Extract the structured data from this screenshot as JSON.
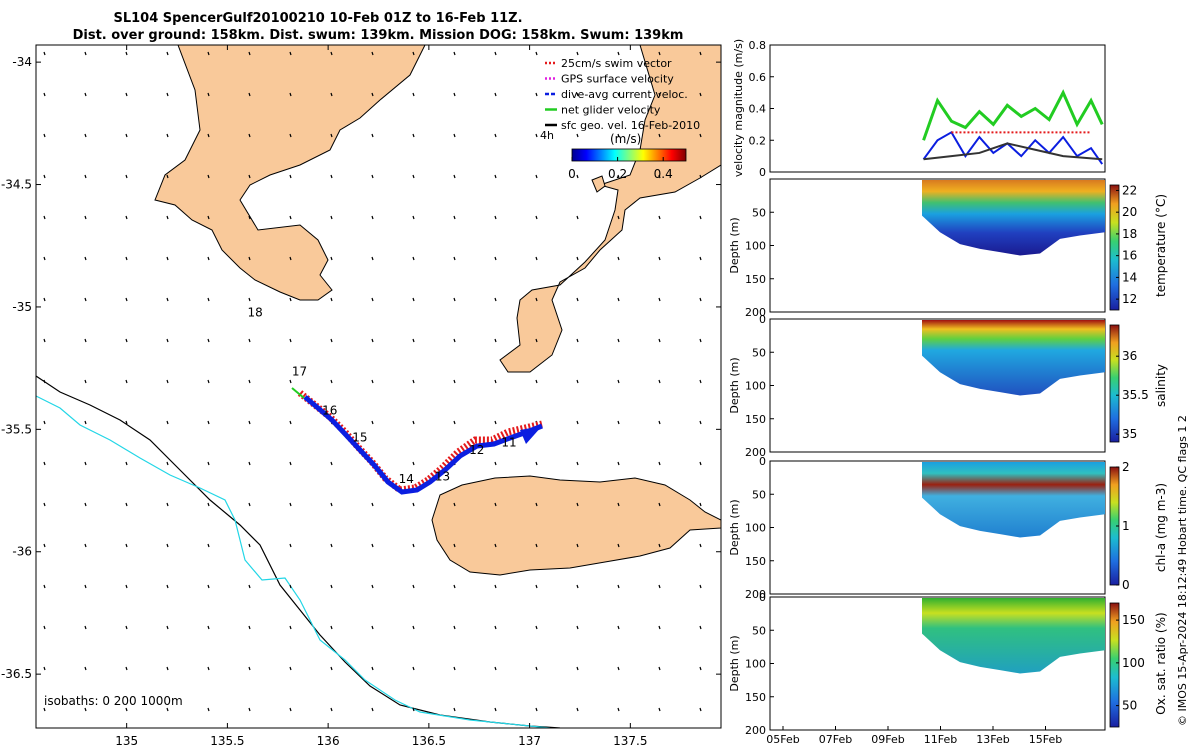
{
  "title": {
    "line1": "SL104 SpencerGulf20100210 10-Feb 01Z to 16-Feb 11Z.",
    "line2": "Dist. over ground: 158km. Dist. swum: 139km. Mission DOG: 158km. Swum: 139km"
  },
  "colors": {
    "land": "#f9c99a",
    "track_red": "#e41a1c",
    "track_blue": "#0b1ee0",
    "net_green": "#22cc22",
    "isobath_200": "#000000",
    "isobath_1000": "#22d6e6"
  },
  "map": {
    "xticks": [
      "135",
      "135.5",
      "136",
      "136.5",
      "137",
      "137.5"
    ],
    "yticks": [
      "-34",
      "-34.5",
      "-35",
      "-35.5",
      "-36",
      "-36.5"
    ],
    "xlim": [
      134.55,
      137.95
    ],
    "ylim": [
      -36.72,
      -33.93
    ],
    "legend": [
      {
        "label": "25cm/s swim vector",
        "color": "#e41a1c",
        "style": "dotted"
      },
      {
        "label": "GPS surface velocity",
        "color": "#e020e0",
        "style": "dotted"
      },
      {
        "label": "dive-avg current veloc.",
        "color": "#0b1ee0",
        "style": "dashed"
      },
      {
        "label": "net glider velocity",
        "color": "#22cc22",
        "style": "solid"
      },
      {
        "label": "sfc geo. vel. 16-Feb-2010",
        "color": "#000000",
        "style": "solid"
      }
    ],
    "colorbar": {
      "label": "(m/s)",
      "ticks": [
        "0",
        "0.2",
        "0.4"
      ],
      "range": [
        0,
        0.5
      ]
    },
    "h4_label": "4h",
    "day_labels": [
      {
        "text": "18",
        "lon": 135.6,
        "lat": -35.04
      },
      {
        "text": "17",
        "lon": 135.82,
        "lat": -35.28
      },
      {
        "text": "16",
        "lon": 135.97,
        "lat": -35.44
      },
      {
        "text": "15",
        "lon": 136.12,
        "lat": -35.55
      },
      {
        "text": "14",
        "lon": 136.35,
        "lat": -35.72
      },
      {
        "text": "13",
        "lon": 136.53,
        "lat": -35.71
      },
      {
        "text": "12",
        "lon": 136.7,
        "lat": -35.6
      },
      {
        "text": "11",
        "lon": 136.86,
        "lat": -35.57
      }
    ],
    "isobath_note": "isobaths: 0  200  1000m"
  },
  "chart_data": [
    {
      "type": "line",
      "ylabel": "velocity magnitude (m/s)",
      "ylim": [
        0,
        0.8
      ],
      "yticks": [
        "0",
        "0.2",
        "0.4",
        "0.6",
        "0.8"
      ],
      "xlim": [
        4.5,
        16.5
      ],
      "series": [
        {
          "name": "net glider velocity",
          "color": "#22cc22",
          "x": [
            10.0,
            10.5,
            11.0,
            11.5,
            12.0,
            12.5,
            13.0,
            13.5,
            14.0,
            14.5,
            15.0,
            15.5,
            16.0,
            16.4
          ],
          "values": [
            0.2,
            0.45,
            0.32,
            0.28,
            0.38,
            0.3,
            0.42,
            0.35,
            0.4,
            0.33,
            0.5,
            0.3,
            0.45,
            0.3
          ]
        },
        {
          "name": "dive-avg current veloc.",
          "color": "#0b1ee0",
          "x": [
            10.0,
            10.5,
            11.0,
            11.5,
            12.0,
            12.5,
            13.0,
            13.5,
            14.0,
            14.5,
            15.0,
            15.5,
            16.0,
            16.4
          ],
          "values": [
            0.08,
            0.2,
            0.25,
            0.1,
            0.22,
            0.12,
            0.18,
            0.1,
            0.2,
            0.12,
            0.22,
            0.1,
            0.15,
            0.05
          ]
        },
        {
          "name": "25cm/s swim vector",
          "color": "#e41a1c",
          "x": [
            11.0,
            16.0
          ],
          "values": [
            0.25,
            0.25
          ]
        },
        {
          "name": "sfc geo. vel. 16-Feb-2010",
          "color": "#333333",
          "x": [
            10.0,
            11.0,
            12.0,
            13.0,
            14.0,
            15.0,
            16.4
          ],
          "values": [
            0.08,
            0.1,
            0.12,
            0.18,
            0.14,
            0.1,
            0.08
          ]
        }
      ]
    },
    {
      "type": "heatmap",
      "ylabel": "Depth (m)",
      "cbar_label": "temperature (°C)",
      "cbar_ticks": [
        "12",
        "14",
        "16",
        "18",
        "20",
        "22"
      ],
      "cbar_range": [
        11,
        22.5
      ],
      "y_ticks": [
        "50",
        "100",
        "150",
        "200"
      ]
    },
    {
      "type": "heatmap",
      "ylabel": "Depth (m)",
      "cbar_label": "salinity",
      "cbar_ticks": [
        "35",
        "35.5",
        "36"
      ],
      "cbar_range": [
        34.9,
        36.4
      ],
      "y_ticks": [
        "0",
        "50",
        "100",
        "150",
        "200"
      ]
    },
    {
      "type": "heatmap",
      "ylabel": "Depth (m)",
      "cbar_label": "chl-a (mg m-3)",
      "cbar_ticks": [
        "0",
        "1",
        "2"
      ],
      "cbar_range": [
        0,
        2
      ],
      "y_ticks": [
        "0",
        "50",
        "100",
        "150",
        "200"
      ]
    },
    {
      "type": "heatmap",
      "ylabel": "Depth (m)",
      "cbar_label": "Ox. sat. ratio (%)",
      "cbar_ticks": [
        "50",
        "100",
        "150"
      ],
      "cbar_range": [
        25,
        170
      ],
      "y_ticks": [
        "0",
        "50",
        "100",
        "150",
        "200"
      ],
      "x_ticks": [
        "05Feb",
        "07Feb",
        "09Feb",
        "11Feb",
        "13Feb",
        "15Feb"
      ]
    }
  ],
  "side_note": "© IMOS 15-Apr-2024 18:12:49 Hobart time. QC flags 1  2"
}
